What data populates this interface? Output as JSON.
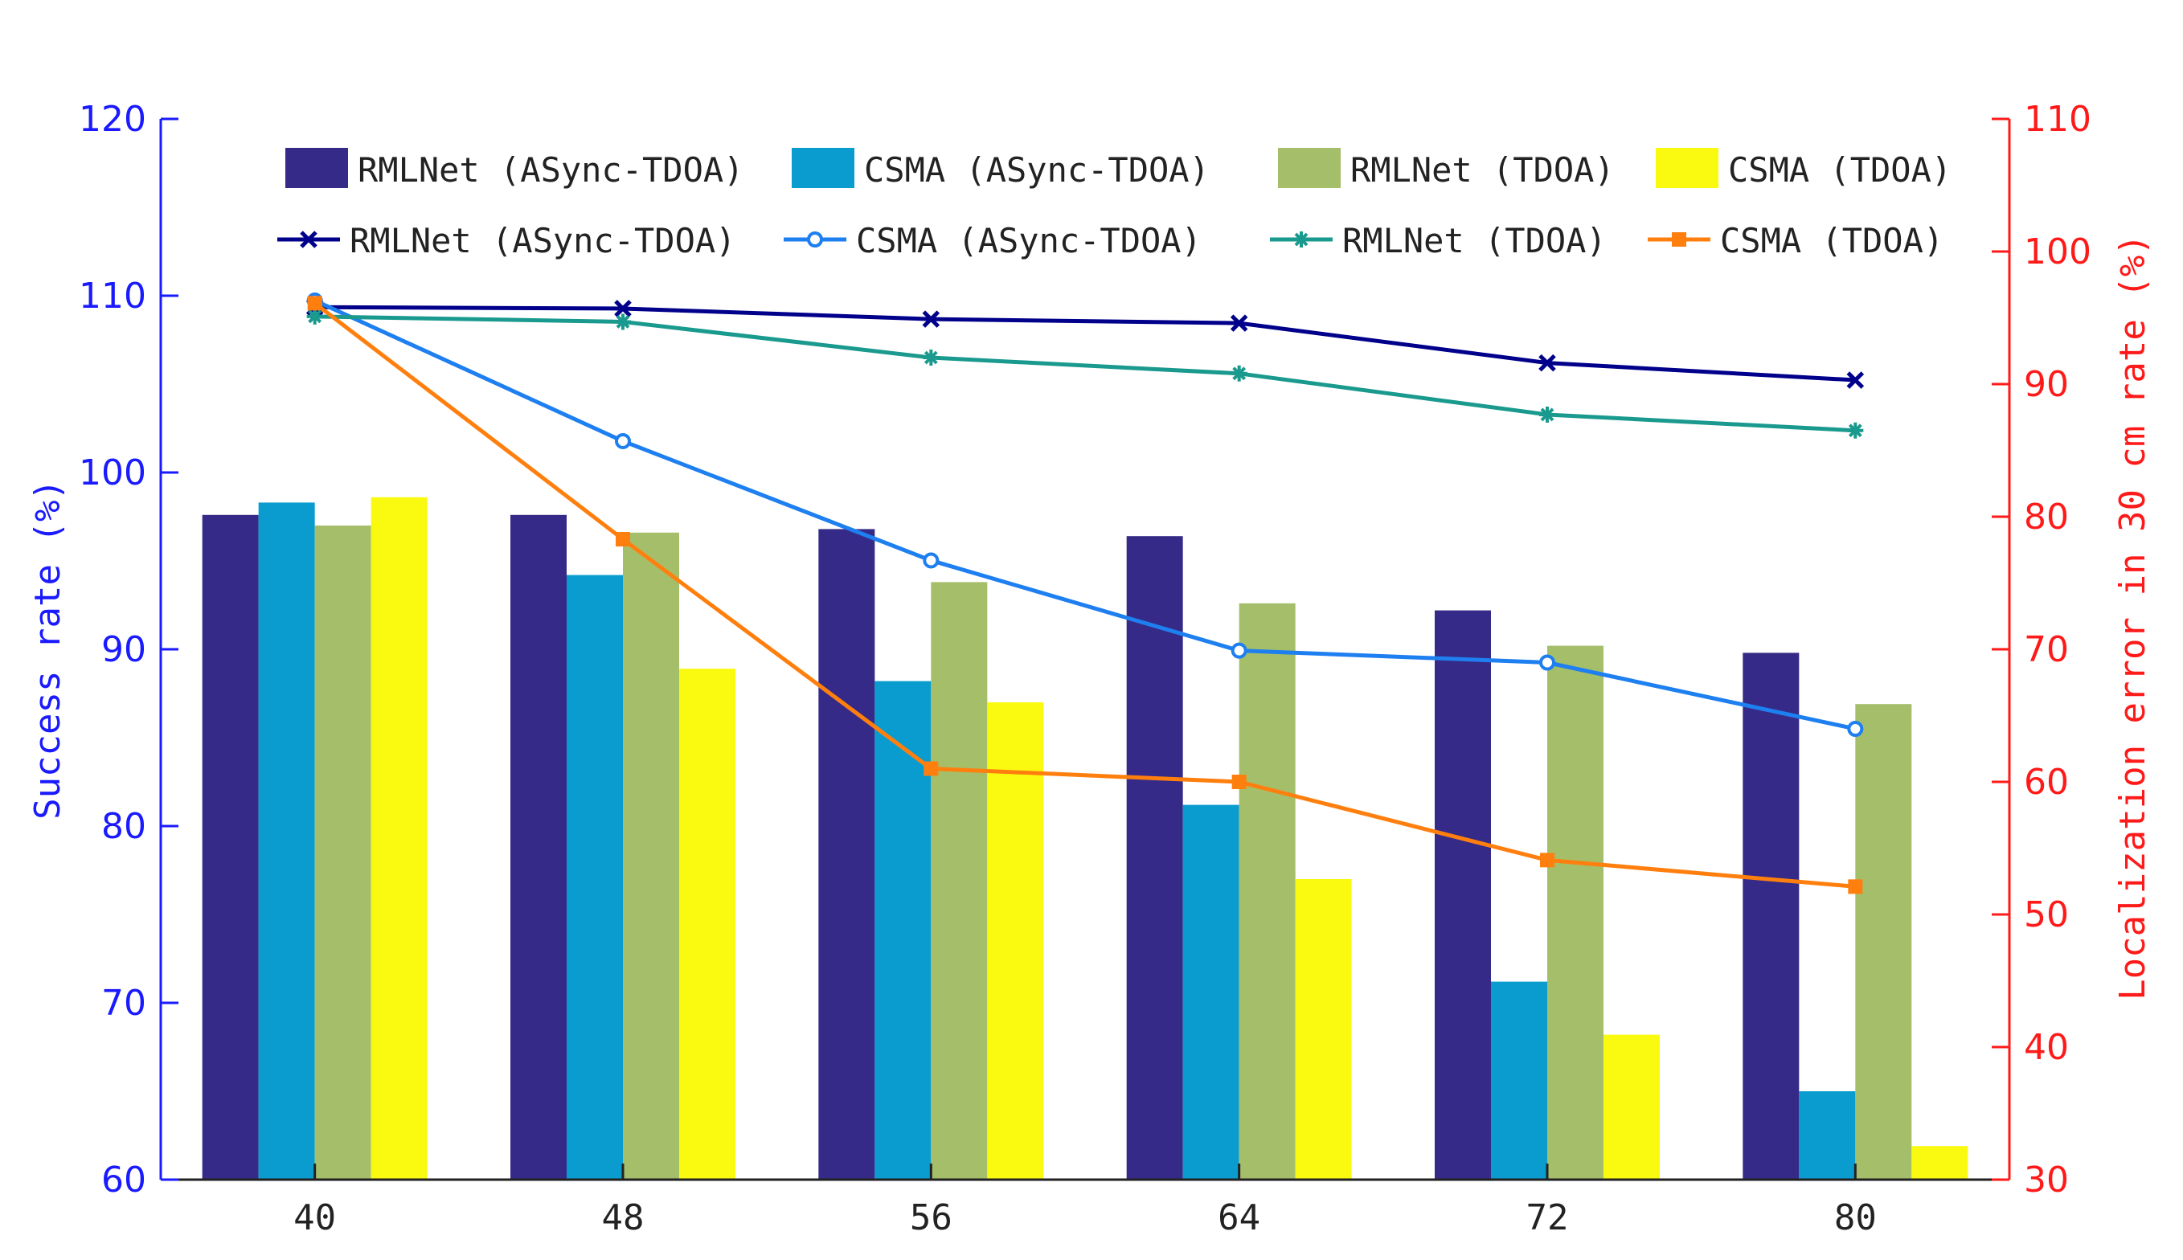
{
  "chart_data": {
    "type": "bar",
    "categories": [
      "40",
      "48",
      "56",
      "64",
      "72",
      "80"
    ],
    "ylabel": "Success rate (%)",
    "ylabel_right": "Localization error in 30 cm rate (%)",
    "ylim": [
      60,
      120
    ],
    "ylim_right": [
      30,
      110
    ],
    "yticks_left": [
      "60",
      "70",
      "80",
      "90",
      "100",
      "110",
      "120"
    ],
    "yticks_right": [
      "30",
      "40",
      "50",
      "60",
      "70",
      "80",
      "90",
      "100",
      "110"
    ],
    "legend_position": "top",
    "bar_series": [
      {
        "name": "RMLNet (ASync-TDOA)",
        "color": "#352a87",
        "values": [
          97.6,
          97.6,
          96.8,
          96.4,
          92.2,
          89.8
        ]
      },
      {
        "name": "CSMA (ASync-TDOA)",
        "color": "#0a9ccf",
        "values": [
          98.3,
          94.2,
          88.2,
          81.2,
          71.2,
          65.0
        ]
      },
      {
        "name": "RMLNet (TDOA)",
        "color": "#a5be6a",
        "values": [
          97.0,
          96.6,
          93.8,
          92.6,
          90.2,
          86.9
        ]
      },
      {
        "name": "CSMA (TDOA)",
        "color": "#f9fa0f",
        "values": [
          98.6,
          88.9,
          87.0,
          77.0,
          68.2,
          61.9
        ]
      }
    ],
    "line_series": [
      {
        "name": "RMLNet (ASync-TDOA)",
        "color": "#00008b",
        "marker": "x",
        "values": [
          95.8,
          95.7,
          94.9,
          94.6,
          91.6,
          90.3
        ]
      },
      {
        "name": "CSMA (ASync-TDOA)",
        "color": "#1e7ff0",
        "marker": "o",
        "values": [
          96.3,
          85.7,
          76.7,
          69.9,
          69.0,
          64.0
        ]
      },
      {
        "name": "RMLNet (TDOA)",
        "color": "#1a9a8e",
        "marker": "*",
        "values": [
          95.1,
          94.7,
          92.0,
          90.8,
          87.7,
          86.5
        ]
      },
      {
        "name": "CSMA (TDOA)",
        "color": "#ff7f0e",
        "marker": "s",
        "values": [
          96.1,
          78.3,
          61.0,
          60.0,
          54.1,
          52.1
        ]
      }
    ]
  }
}
